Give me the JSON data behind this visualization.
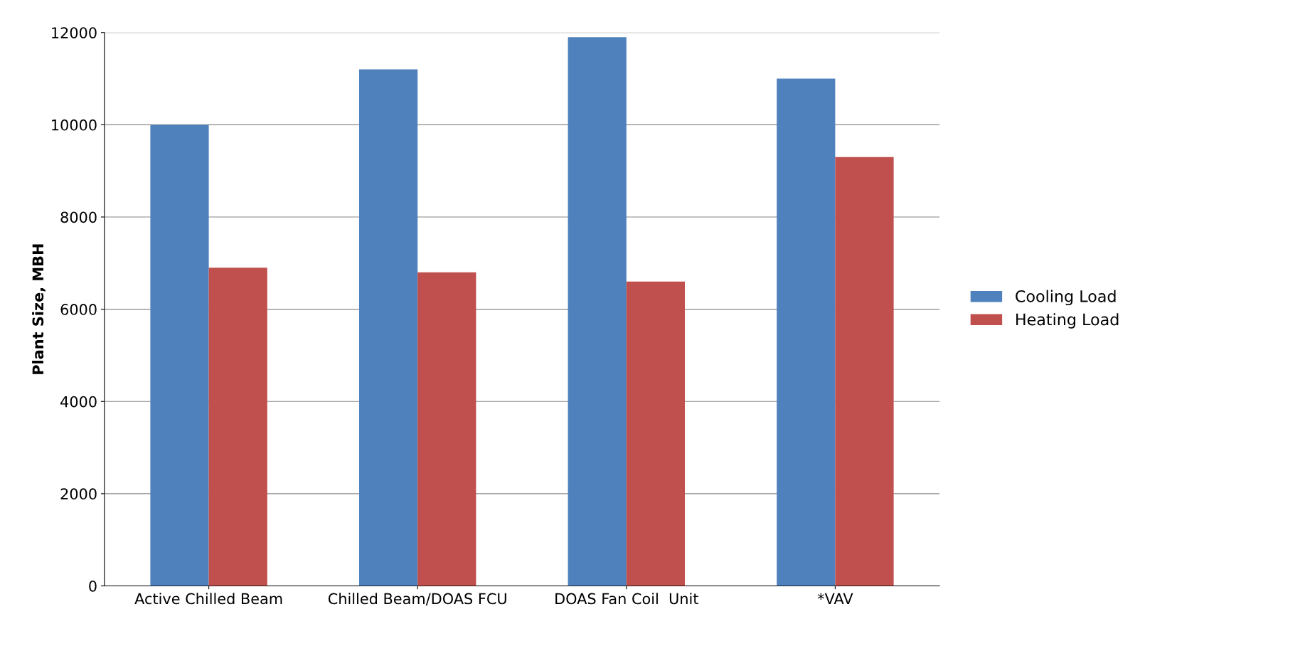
{
  "chart_data": {
    "type": "bar",
    "ylabel": "Plant Size, MBH",
    "categories": [
      "Active Chilled Beam",
      "Chilled Beam/DOAS FCU",
      "DOAS Fan Coil  Unit",
      "*VAV"
    ],
    "series": [
      {
        "name": "Cooling Load",
        "color": "#4f81bd",
        "values": [
          10000,
          11200,
          11900,
          11000
        ]
      },
      {
        "name": "Heating Load",
        "color": "#c0504d",
        "values": [
          6900,
          6800,
          6600,
          9300
        ]
      }
    ],
    "ylim": [
      0,
      12000
    ],
    "yticks": [
      0,
      2000,
      4000,
      6000,
      8000,
      10000,
      12000
    ],
    "grid": "y",
    "legend": "right"
  }
}
